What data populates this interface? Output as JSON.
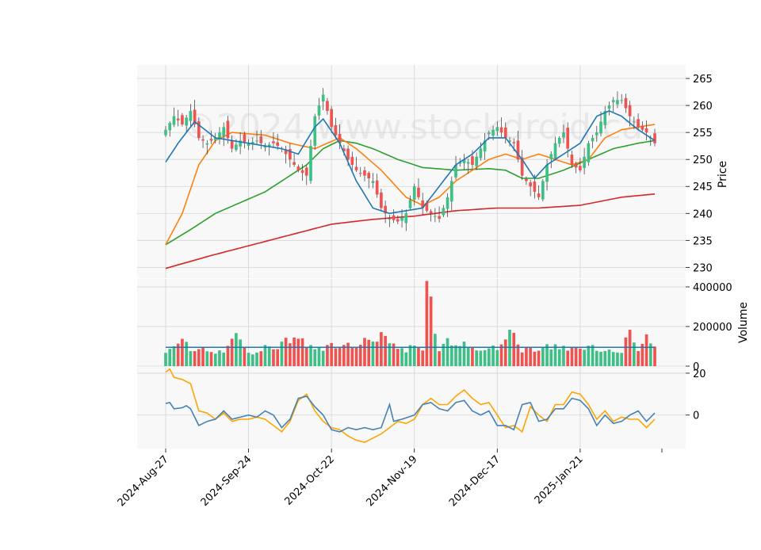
{
  "watermark": "©2024 www.stockdroid.ca",
  "colors": {
    "up": "#26a69a",
    "up_fill": "#3dbf85",
    "down": "#ef5350",
    "ma_short": "#1f77b4",
    "ma_mid": "#ff7f0e",
    "ma_long": "#2ca02c",
    "ma_200": "#d62728",
    "macd_line": "#4682b4",
    "signal_line": "#ffa500",
    "panel_bg": "#f8f8f8",
    "grid": "#d3d3d3"
  },
  "chart_data": [
    {
      "type": "candlestick",
      "panel": "price",
      "ylabel": "Price",
      "ylim": [
        228,
        267.5
      ],
      "yticks": [
        230,
        235,
        240,
        245,
        250,
        255,
        260,
        265
      ],
      "grid": true,
      "x_tick_labels": [
        "2024-Aug-27",
        "2024-Sep-24",
        "2024-Oct-22",
        "2024-Nov-19",
        "2024-Dec-17",
        "2025-Jan-21"
      ],
      "x_tick_index": [
        0,
        20,
        40,
        60,
        80,
        100
      ],
      "n_bars": 119,
      "close_anchors": [
        [
          0,
          255.5
        ],
        [
          2,
          258
        ],
        [
          4,
          256.5
        ],
        [
          6,
          259
        ],
        [
          8,
          254
        ],
        [
          10,
          253
        ],
        [
          12,
          254
        ],
        [
          14,
          256
        ],
        [
          16,
          252
        ],
        [
          18,
          253.5
        ],
        [
          20,
          253
        ],
        [
          22,
          253.5
        ],
        [
          24,
          252.5
        ],
        [
          26,
          253
        ],
        [
          28,
          252
        ],
        [
          30,
          250
        ],
        [
          32,
          248
        ],
        [
          34,
          247
        ],
        [
          36,
          258
        ],
        [
          38,
          262
        ],
        [
          40,
          256
        ],
        [
          42,
          253
        ],
        [
          44,
          250
        ],
        [
          46,
          248
        ],
        [
          48,
          247
        ],
        [
          50,
          246
        ],
        [
          52,
          241
        ],
        [
          54,
          239
        ],
        [
          56,
          238.5
        ],
        [
          58,
          240
        ],
        [
          60,
          245
        ],
        [
          62,
          241
        ],
        [
          64,
          240
        ],
        [
          66,
          239
        ],
        [
          68,
          243
        ],
        [
          70,
          249
        ],
        [
          72,
          250
        ],
        [
          74,
          249
        ],
        [
          76,
          252
        ],
        [
          78,
          255
        ],
        [
          80,
          256
        ],
        [
          82,
          254
        ],
        [
          84,
          253
        ],
        [
          86,
          247
        ],
        [
          88,
          245
        ],
        [
          90,
          243
        ],
        [
          92,
          249
        ],
        [
          94,
          253
        ],
        [
          96,
          255
        ],
        [
          98,
          249
        ],
        [
          100,
          248
        ],
        [
          102,
          253
        ],
        [
          104,
          255
        ],
        [
          106,
          259
        ],
        [
          108,
          261
        ],
        [
          110,
          261
        ],
        [
          112,
          258
        ],
        [
          114,
          256
        ],
        [
          116,
          255
        ],
        [
          118,
          253
        ]
      ],
      "ma_short_anchors": [
        [
          0,
          249.5
        ],
        [
          3,
          253
        ],
        [
          7,
          257
        ],
        [
          12,
          254
        ],
        [
          20,
          253
        ],
        [
          28,
          252
        ],
        [
          32,
          251
        ],
        [
          36,
          256
        ],
        [
          38,
          257.5
        ],
        [
          42,
          253
        ],
        [
          46,
          246
        ],
        [
          50,
          241
        ],
        [
          54,
          240
        ],
        [
          58,
          240.5
        ],
        [
          62,
          241
        ],
        [
          66,
          245
        ],
        [
          70,
          249
        ],
        [
          74,
          251
        ],
        [
          78,
          254
        ],
        [
          82,
          254
        ],
        [
          86,
          250
        ],
        [
          89,
          246.5
        ],
        [
          92,
          249
        ],
        [
          96,
          251
        ],
        [
          100,
          253
        ],
        [
          104,
          258
        ],
        [
          107,
          259
        ],
        [
          110,
          258
        ],
        [
          114,
          255.5
        ],
        [
          118,
          253.5
        ]
      ],
      "ma_mid_anchors": [
        [
          0,
          234.2
        ],
        [
          4,
          240
        ],
        [
          8,
          249
        ],
        [
          12,
          253.5
        ],
        [
          16,
          255
        ],
        [
          24,
          254.5
        ],
        [
          30,
          253
        ],
        [
          36,
          252
        ],
        [
          42,
          254
        ],
        [
          46,
          252
        ],
        [
          52,
          248
        ],
        [
          58,
          243
        ],
        [
          62,
          241.5
        ],
        [
          66,
          243
        ],
        [
          70,
          246
        ],
        [
          74,
          248
        ],
        [
          78,
          250
        ],
        [
          82,
          251
        ],
        [
          86,
          250
        ],
        [
          90,
          251
        ],
        [
          94,
          250
        ],
        [
          98,
          249
        ],
        [
          102,
          250
        ],
        [
          106,
          254
        ],
        [
          110,
          255.5
        ],
        [
          114,
          256
        ],
        [
          118,
          256.5
        ]
      ],
      "ma_long_anchors": [
        [
          0,
          234.2
        ],
        [
          6,
          237
        ],
        [
          12,
          240
        ],
        [
          18,
          242
        ],
        [
          24,
          244
        ],
        [
          30,
          247
        ],
        [
          34,
          249
        ],
        [
          38,
          252
        ],
        [
          42,
          253.5
        ],
        [
          46,
          253
        ],
        [
          50,
          252
        ],
        [
          56,
          250
        ],
        [
          62,
          248.5
        ],
        [
          70,
          248
        ],
        [
          78,
          248.3
        ],
        [
          82,
          248
        ],
        [
          86,
          246.5
        ],
        [
          90,
          246.5
        ],
        [
          96,
          248
        ],
        [
          102,
          250
        ],
        [
          108,
          252
        ],
        [
          114,
          253
        ],
        [
          118,
          253.5
        ]
      ],
      "ma_200_anchors": [
        [
          0,
          229.8
        ],
        [
          10,
          232
        ],
        [
          20,
          234
        ],
        [
          30,
          236
        ],
        [
          40,
          238
        ],
        [
          50,
          238.9
        ],
        [
          60,
          239.5
        ],
        [
          70,
          240.5
        ],
        [
          80,
          241
        ],
        [
          90,
          241
        ],
        [
          100,
          241.5
        ],
        [
          110,
          243
        ],
        [
          118,
          243.6
        ]
      ]
    },
    {
      "type": "bar",
      "panel": "volume",
      "ylabel": "Volume",
      "ylim": [
        0,
        440000
      ],
      "yticks": [
        0,
        200000,
        400000
      ],
      "grid": true,
      "volume_anchors": [
        [
          0,
          60000
        ],
        [
          3,
          140000
        ],
        [
          6,
          90000
        ],
        [
          10,
          80000
        ],
        [
          14,
          70000
        ],
        [
          17,
          180000
        ],
        [
          20,
          60000
        ],
        [
          24,
          90000
        ],
        [
          28,
          110000
        ],
        [
          31,
          160000
        ],
        [
          34,
          110000
        ],
        [
          38,
          90000
        ],
        [
          40,
          110000
        ],
        [
          44,
          100000
        ],
        [
          48,
          120000
        ],
        [
          52,
          160000
        ],
        [
          56,
          100000
        ],
        [
          58,
          80000
        ],
        [
          60,
          110000
        ],
        [
          62,
          95000
        ],
        [
          63,
          430000
        ],
        [
          66,
          90000
        ],
        [
          68,
          120000
        ],
        [
          72,
          110000
        ],
        [
          76,
          80000
        ],
        [
          80,
          100000
        ],
        [
          82,
          140000
        ],
        [
          84,
          170000
        ],
        [
          86,
          80000
        ],
        [
          90,
          90000
        ],
        [
          94,
          110000
        ],
        [
          98,
          90000
        ],
        [
          100,
          100000
        ],
        [
          104,
          90000
        ],
        [
          107,
          70000
        ],
        [
          110,
          80000
        ],
        [
          112,
          180000
        ],
        [
          114,
          80000
        ],
        [
          116,
          160000
        ],
        [
          118,
          90000
        ]
      ],
      "volume_ma": 95000
    },
    {
      "type": "line",
      "panel": "oscillator",
      "ylim": [
        -16,
        23
      ],
      "yticks": [
        0,
        20
      ],
      "grid": true,
      "macd_anchors": [
        [
          0,
          5.5
        ],
        [
          1,
          6
        ],
        [
          2,
          3
        ],
        [
          4,
          3.5
        ],
        [
          5,
          4.5
        ],
        [
          6,
          3
        ],
        [
          8,
          -5
        ],
        [
          10,
          -3
        ],
        [
          12,
          -2
        ],
        [
          14,
          2
        ],
        [
          16,
          -2
        ],
        [
          18,
          -1
        ],
        [
          20,
          0
        ],
        [
          22,
          -1
        ],
        [
          24,
          2
        ],
        [
          26,
          0
        ],
        [
          28,
          -6
        ],
        [
          30,
          -2
        ],
        [
          32,
          8
        ],
        [
          34,
          9
        ],
        [
          36,
          4
        ],
        [
          38,
          0
        ],
        [
          40,
          -7
        ],
        [
          42,
          -8
        ],
        [
          44,
          -6
        ],
        [
          46,
          -7
        ],
        [
          48,
          -6
        ],
        [
          50,
          -7
        ],
        [
          52,
          -6
        ],
        [
          54,
          5
        ],
        [
          55,
          -3
        ],
        [
          57,
          -2
        ],
        [
          60,
          0
        ],
        [
          62,
          5
        ],
        [
          64,
          6
        ],
        [
          66,
          3
        ],
        [
          68,
          2
        ],
        [
          70,
          6
        ],
        [
          72,
          7
        ],
        [
          74,
          2
        ],
        [
          76,
          0
        ],
        [
          78,
          2
        ],
        [
          80,
          -5
        ],
        [
          82,
          -5
        ],
        [
          84,
          -7
        ],
        [
          86,
          5
        ],
        [
          88,
          6
        ],
        [
          90,
          -3
        ],
        [
          92,
          -2
        ],
        [
          94,
          3
        ],
        [
          96,
          3
        ],
        [
          98,
          8
        ],
        [
          100,
          7
        ],
        [
          102,
          3
        ],
        [
          104,
          -5
        ],
        [
          106,
          0
        ],
        [
          108,
          -4
        ],
        [
          110,
          -3
        ],
        [
          112,
          0
        ],
        [
          114,
          2
        ],
        [
          116,
          -3
        ],
        [
          118,
          1
        ]
      ],
      "signal_anchors": [
        [
          0,
          20.5
        ],
        [
          1,
          22
        ],
        [
          2,
          18
        ],
        [
          4,
          17
        ],
        [
          6,
          15
        ],
        [
          8,
          2
        ],
        [
          10,
          1
        ],
        [
          12,
          -2
        ],
        [
          14,
          1
        ],
        [
          16,
          -3
        ],
        [
          18,
          -2
        ],
        [
          20,
          -2
        ],
        [
          22,
          -1
        ],
        [
          24,
          -2
        ],
        [
          26,
          -5
        ],
        [
          28,
          -8
        ],
        [
          30,
          -3
        ],
        [
          32,
          7
        ],
        [
          34,
          10
        ],
        [
          36,
          2
        ],
        [
          38,
          -3
        ],
        [
          40,
          -6
        ],
        [
          42,
          -7
        ],
        [
          44,
          -10
        ],
        [
          46,
          -12
        ],
        [
          48,
          -13
        ],
        [
          50,
          -11
        ],
        [
          52,
          -9
        ],
        [
          54,
          -6
        ],
        [
          56,
          -3
        ],
        [
          58,
          -4
        ],
        [
          60,
          -2
        ],
        [
          62,
          5
        ],
        [
          64,
          8
        ],
        [
          66,
          5
        ],
        [
          68,
          5
        ],
        [
          70,
          9
        ],
        [
          72,
          12
        ],
        [
          74,
          8
        ],
        [
          76,
          5
        ],
        [
          78,
          6
        ],
        [
          80,
          0
        ],
        [
          82,
          -6
        ],
        [
          84,
          -5
        ],
        [
          86,
          -8
        ],
        [
          88,
          4
        ],
        [
          90,
          0
        ],
        [
          92,
          -3
        ],
        [
          94,
          5
        ],
        [
          96,
          5
        ],
        [
          98,
          11
        ],
        [
          100,
          10
        ],
        [
          102,
          5
        ],
        [
          104,
          -2
        ],
        [
          106,
          2
        ],
        [
          108,
          -3
        ],
        [
          110,
          -1
        ],
        [
          112,
          -2
        ],
        [
          114,
          -2
        ],
        [
          116,
          -6
        ],
        [
          118,
          -2
        ]
      ]
    }
  ]
}
